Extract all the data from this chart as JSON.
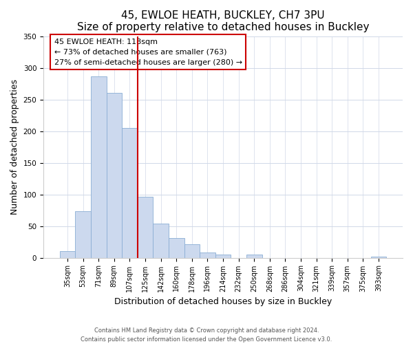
{
  "title": "45, EWLOE HEATH, BUCKLEY, CH7 3PU",
  "subtitle": "Size of property relative to detached houses in Buckley",
  "xlabel": "Distribution of detached houses by size in Buckley",
  "ylabel": "Number of detached properties",
  "bar_labels": [
    "35sqm",
    "53sqm",
    "71sqm",
    "89sqm",
    "107sqm",
    "125sqm",
    "142sqm",
    "160sqm",
    "178sqm",
    "196sqm",
    "214sqm",
    "232sqm",
    "250sqm",
    "268sqm",
    "286sqm",
    "304sqm",
    "321sqm",
    "339sqm",
    "357sqm",
    "375sqm",
    "393sqm"
  ],
  "bar_heights": [
    10,
    73,
    287,
    261,
    205,
    96,
    54,
    31,
    21,
    8,
    5,
    0,
    5,
    0,
    0,
    0,
    0,
    0,
    0,
    0,
    2
  ],
  "bar_color": "#ccd9ee",
  "bar_edge_color": "#8aadd4",
  "vline_x": 4.5,
  "vline_color": "#cc0000",
  "annotation_title": "45 EWLOE HEATH: 118sqm",
  "annotation_line1": "← 73% of detached houses are smaller (763)",
  "annotation_line2": "27% of semi-detached houses are larger (280) →",
  "annotation_box_color": "#ffffff",
  "annotation_box_edge": "#cc0000",
  "ylim": [
    0,
    350
  ],
  "yticks": [
    0,
    50,
    100,
    150,
    200,
    250,
    300,
    350
  ],
  "footer_line1": "Contains HM Land Registry data © Crown copyright and database right 2024.",
  "footer_line2": "Contains public sector information licensed under the Open Government Licence v3.0.",
  "title_fontsize": 11,
  "subtitle_fontsize": 10,
  "tick_fontsize": 7,
  "ylabel_fontsize": 9,
  "xlabel_fontsize": 9,
  "annotation_fontsize": 8,
  "footer_fontsize": 6
}
